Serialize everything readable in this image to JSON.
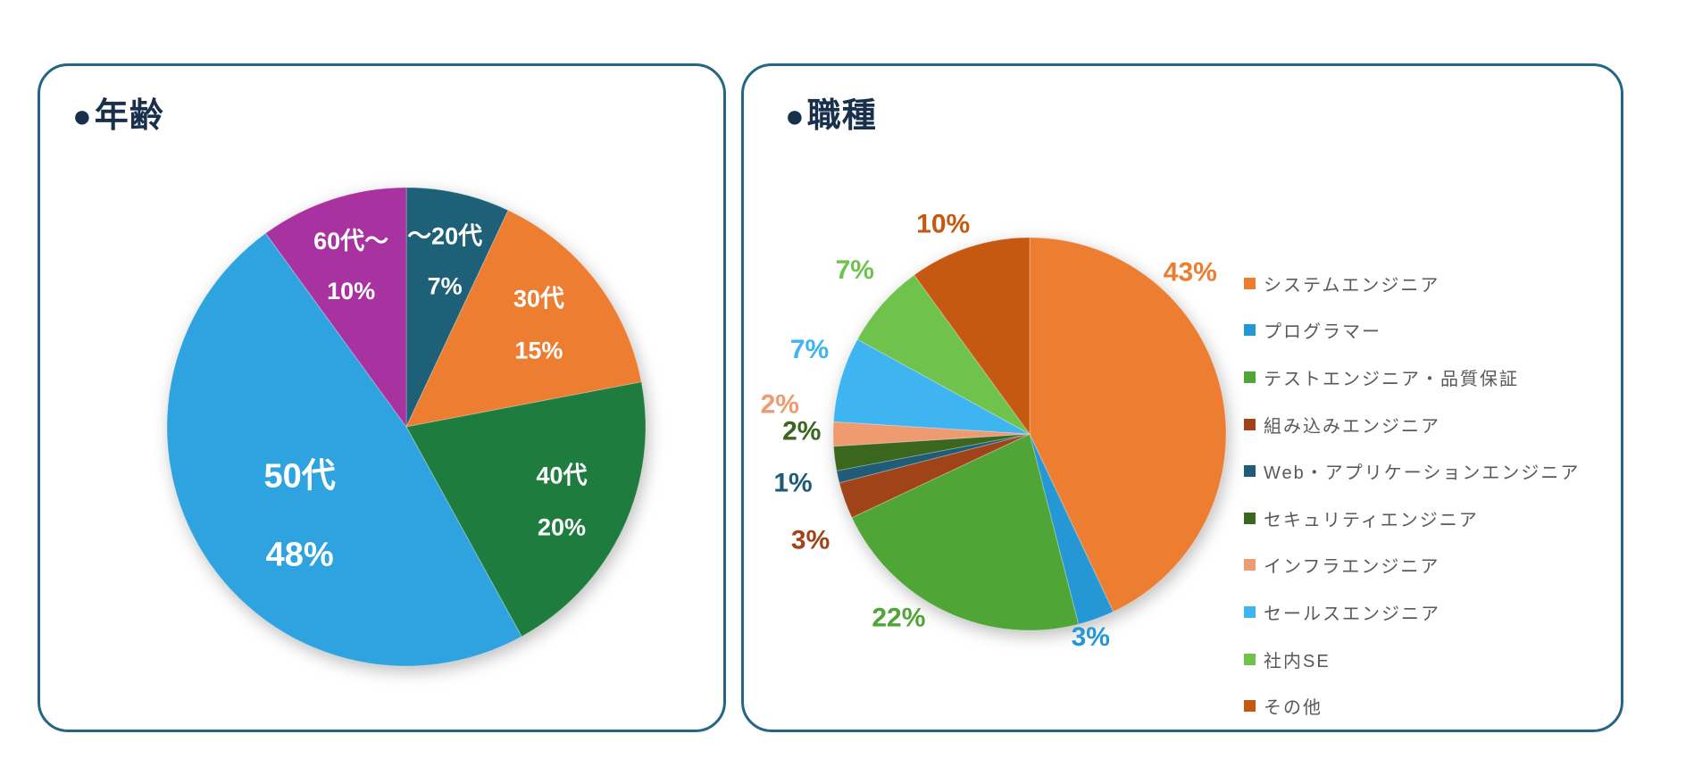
{
  "panels": [
    {
      "bullet": "●",
      "title": "年齢"
    },
    {
      "bullet": "●",
      "title": "職種"
    }
  ],
  "legend_text_color": "#595959",
  "panel_border_color": "#266685",
  "title_color": "#18304C",
  "chart_data": [
    {
      "type": "pie",
      "title": "年齢",
      "categories": [
        "～20代",
        "30代",
        "40代",
        "50代",
        "60代～"
      ],
      "values": [
        7,
        15,
        20,
        48,
        10
      ],
      "unit": "%",
      "direction": "clockwise",
      "start_angle_deg": 0,
      "legend": "none",
      "colors": [
        "#1D6078",
        "#ED7D31",
        "#1F7C3F",
        "#2EA3DF",
        "#A833A0"
      ],
      "labels": [
        {
          "lines": [
            "～20代",
            "7%"
          ],
          "angle": 13.1,
          "r": 0.71,
          "color": "#ffffff",
          "size": 27,
          "gap": 56
        },
        {
          "lines": [
            "30代",
            "15%"
          ],
          "angle": 52.3,
          "r": 0.7,
          "color": "#ffffff",
          "size": 27,
          "gap": 58
        },
        {
          "lines": [
            "40代",
            "20%"
          ],
          "angle": 115.6,
          "r": 0.72,
          "color": "#ffffff",
          "size": 27,
          "gap": 58
        },
        {
          "lines": [
            "50代",
            "48%"
          ],
          "angle": 230.2,
          "r": 0.58,
          "color": "#ffffff",
          "size": 38,
          "gap": 88
        },
        {
          "lines": [
            "60代～",
            "10%"
          ],
          "angle": 341.0,
          "r": 0.71,
          "color": "#ffffff",
          "size": 27,
          "gap": 56
        }
      ]
    },
    {
      "type": "pie",
      "title": "職種",
      "categories": [
        "システムエンジニア",
        "プログラマー",
        "テストエンジニア・品質保証",
        "組み込みエンジニア",
        "Web・アプリケーションエンジニア",
        "セキュリティエンジニア",
        "インフラエンジニア",
        "セールスエンジニア",
        "社内SE",
        "その他"
      ],
      "values": [
        43,
        3,
        22,
        3,
        1,
        2,
        2,
        7,
        7,
        10
      ],
      "unit": "%",
      "direction": "clockwise",
      "start_angle_deg": 0,
      "legend": "right",
      "colors": [
        "#ED7D31",
        "#2697D5",
        "#4FA536",
        "#A04319",
        "#1E5C78",
        "#3A661E",
        "#EF9B72",
        "#3EB4F0",
        "#6FC24B",
        "#C65911"
      ],
      "labels": [
        {
          "lines": [
            "43%"
          ],
          "angle": 44.8,
          "r": 1.16,
          "color": "#ED7D31",
          "size": 30
        },
        {
          "lines": [
            "3%"
          ],
          "angle": 163.3,
          "r": 1.08,
          "color": "#2697D5",
          "size": 30
        },
        {
          "lines": [
            "22%"
          ],
          "angle": 215.4,
          "r": 1.15,
          "color": "#4FA536",
          "size": 30
        },
        {
          "lines": [
            "3%"
          ],
          "angle": 244.1,
          "r": 1.24,
          "color": "#A04319",
          "size": 30
        },
        {
          "lines": [
            "1%"
          ],
          "angle": 258.3,
          "r": 1.23,
          "color": "#1E5C78",
          "size": 30
        },
        {
          "lines": [
            "2%"
          ],
          "angle": 270.7,
          "r": 1.16,
          "color": "#3A661E",
          "size": 30
        },
        {
          "lines": [
            "2%"
          ],
          "angle": 276.7,
          "r": 1.28,
          "color": "#EF9B72",
          "size": 30
        },
        {
          "lines": [
            "7%"
          ],
          "angle": 291.0,
          "r": 1.2,
          "color": "#3EB4F0",
          "size": 30
        },
        {
          "lines": [
            "7%"
          ],
          "angle": 313.2,
          "r": 1.22,
          "color": "#6FC24B",
          "size": 30
        },
        {
          "lines": [
            "10%"
          ],
          "angle": 337.6,
          "r": 1.155,
          "color": "#C65911",
          "size": 30
        }
      ]
    }
  ]
}
